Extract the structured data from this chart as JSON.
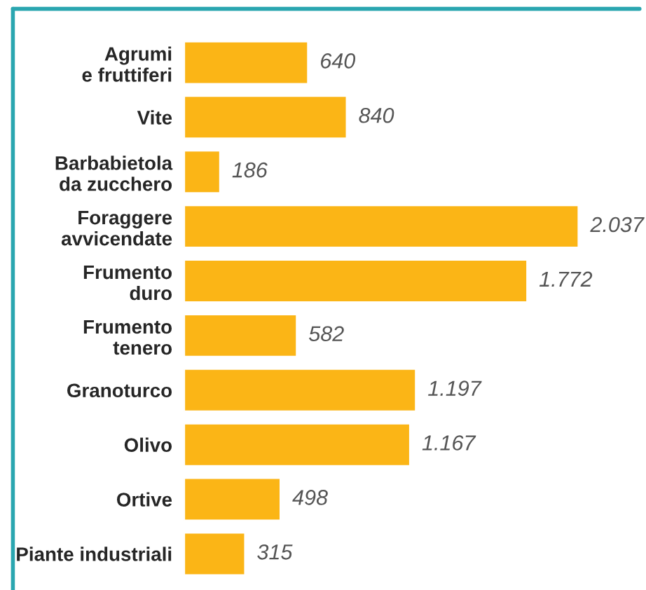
{
  "chart_data": {
    "type": "bar",
    "orientation": "horizontal",
    "categories": [
      "Agrumi\ne fruttiferi",
      "Vite",
      "Barbabietola\nda zucchero",
      "Foraggere\navvicendate",
      "Frumento\nduro",
      "Frumento\ntenero",
      "Granoturco",
      "Olivo",
      "Ortive",
      "Piante industriali"
    ],
    "values": [
      640,
      840,
      186,
      2037,
      1772,
      582,
      1197,
      1167,
      498,
      315
    ],
    "value_labels": [
      "640",
      "840",
      "186",
      "2.037",
      "1.772",
      "582",
      "1.197",
      "1.167",
      "498",
      "315"
    ],
    "color": "#fbb516",
    "tick_labels": "y",
    "grid": false,
    "legend": false
  }
}
